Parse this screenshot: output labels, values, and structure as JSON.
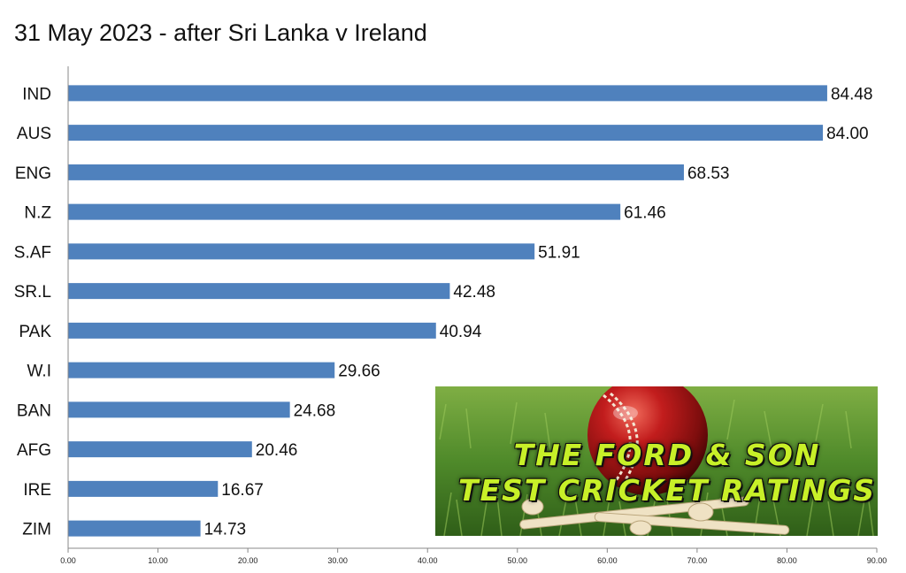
{
  "chart_data": {
    "type": "bar",
    "orientation": "horizontal",
    "title": "31 May 2023 - after Sri Lanka v Ireland",
    "categories": [
      "IND",
      "AUS",
      "ENG",
      "N.Z",
      "S.AF",
      "SR.L",
      "PAK",
      "W.I",
      "BAN",
      "AFG",
      "IRE",
      "ZIM"
    ],
    "values": [
      84.48,
      84.0,
      68.53,
      61.46,
      51.91,
      42.48,
      40.94,
      29.66,
      24.68,
      20.46,
      16.67,
      14.73
    ],
    "data_labels": [
      "84.48",
      "84.00",
      "68.53",
      "61.46",
      "51.91",
      "42.48",
      "40.94",
      "29.66",
      "24.68",
      "20.46",
      "16.67",
      "14.73"
    ],
    "xlim": [
      0,
      90
    ],
    "x_ticks": [
      0,
      10,
      20,
      30,
      40,
      50,
      60,
      70,
      80,
      90
    ],
    "x_tick_labels": [
      "0.00",
      "10.00",
      "20.00",
      "30.00",
      "40.00",
      "50.00",
      "60.00",
      "70.00",
      "80.00",
      "90.00"
    ],
    "xlabel": "",
    "ylabel": "",
    "grid": false,
    "legend": "none",
    "bar_color": "#4f81bd"
  },
  "logo": {
    "line1": "THE FORD & SON",
    "line2": "TEST CRICKET RATINGS",
    "text_color": "#c8f028"
  }
}
